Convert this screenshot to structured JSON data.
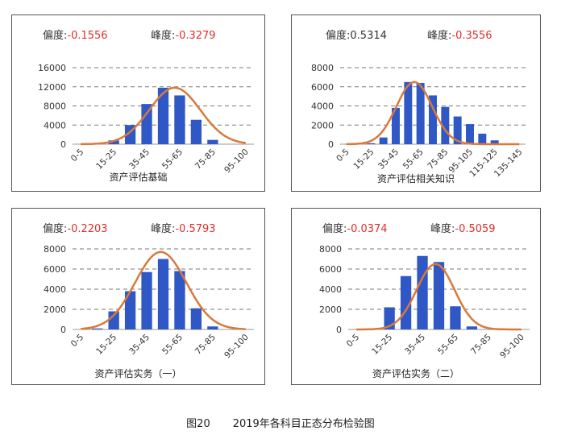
{
  "stat_labels": {
    "skew": "偏度:",
    "kurt": "峰度:"
  },
  "figure_caption": {
    "number": "图20",
    "text": "2019年各科目正态分布检验图"
  },
  "colors": {
    "bar": "#2f57c5",
    "curve": "#d9793a",
    "negative_value": "#e0302a",
    "grid": "#7a7a7a"
  },
  "chart_data": [
    {
      "type": "bar",
      "title": "资产评估基础",
      "skew": "-0.1556",
      "kurt": "-0.3279",
      "categories": [
        "0-5",
        "5-15",
        "15-25",
        "25-35",
        "35-45",
        "45-55",
        "55-65",
        "65-75",
        "75-85",
        "85-95",
        "95-100"
      ],
      "tick_labels": [
        "0-5",
        "15-25",
        "35-45",
        "55-65",
        "75-85",
        "95-100"
      ],
      "values": [
        0,
        0,
        800,
        4000,
        8400,
        11800,
        10200,
        5100,
        900,
        0,
        0
      ],
      "ylim": [
        0,
        16000
      ],
      "yticks": [
        0,
        4000,
        8000,
        12000,
        16000
      ],
      "ytick_labels": [
        "0",
        "4000",
        "8000",
        "12000",
        "16000"
      ],
      "fit_curve": {
        "peak": 11800,
        "center": 5.7,
        "sd": 1.55
      },
      "grid": "dashed"
    },
    {
      "type": "bar",
      "title": "资产评估相关知识",
      "skew": "0.5314",
      "kurt": "-0.3556",
      "categories": [
        "0-5",
        "5-15",
        "15-25",
        "25-35",
        "35-45",
        "45-55",
        "55-65",
        "65-75",
        "75-85",
        "85-95",
        "95-105",
        "105-115",
        "115-125",
        "125-135",
        "135-145"
      ],
      "tick_labels": [
        "0-5",
        "15-25",
        "35-45",
        "55-65",
        "75-85",
        "95-105",
        "115-125",
        "135-145"
      ],
      "values": [
        0,
        0,
        100,
        700,
        3800,
        6500,
        6400,
        5100,
        3900,
        2900,
        2100,
        1100,
        400,
        0,
        0
      ],
      "ylim": [
        0,
        8000
      ],
      "yticks": [
        0,
        2000,
        4000,
        6000,
        8000
      ],
      "ytick_labels": [
        "0",
        "2000",
        "4000",
        "6000",
        "8000"
      ],
      "fit_curve": {
        "peak": 6500,
        "center": 5.5,
        "sd": 1.45
      },
      "grid": "dashed"
    },
    {
      "type": "bar",
      "title": "资产评估实务（一）",
      "skew": "-0.2203",
      "kurt": "-0.5793",
      "categories": [
        "0-5",
        "5-15",
        "15-25",
        "25-35",
        "35-45",
        "45-55",
        "55-65",
        "65-75",
        "75-85",
        "85-95",
        "95-100"
      ],
      "tick_labels": [
        "0-5",
        "15-25",
        "35-45",
        "55-65",
        "75-85",
        "95-100"
      ],
      "values": [
        0,
        100,
        1800,
        3800,
        5700,
        7000,
        5800,
        2100,
        300,
        0,
        0
      ],
      "ylim": [
        0,
        8000
      ],
      "yticks": [
        0,
        2000,
        4000,
        6000,
        8000
      ],
      "ytick_labels": [
        "0",
        "2000",
        "4000",
        "6000",
        "8000"
      ],
      "fit_curve": {
        "peak": 7700,
        "center": 4.85,
        "sd": 1.55
      },
      "grid": "dashed"
    },
    {
      "type": "bar",
      "title": "资产评估实务（二）",
      "skew": "-0.0374",
      "kurt": "-0.5059",
      "categories": [
        "0-5",
        "5-15",
        "15-25",
        "25-35",
        "35-45",
        "45-55",
        "55-65",
        "65-75",
        "75-85",
        "85-95",
        "95-100"
      ],
      "tick_labels": [
        "0-5",
        "15-25",
        "35-45",
        "55-65",
        "75-85",
        "95-100"
      ],
      "values": [
        0,
        100,
        2200,
        5300,
        7300,
        6700,
        2300,
        300,
        0,
        0,
        0
      ],
      "ylim": [
        0,
        8000
      ],
      "yticks": [
        0,
        2000,
        4000,
        6000,
        8000
      ],
      "ytick_labels": [
        "0",
        "2000",
        "4000",
        "6000",
        "8000"
      ],
      "fit_curve": {
        "peak": 6500,
        "center": 4.8,
        "sd": 1.15
      },
      "grid": "dashed"
    }
  ]
}
